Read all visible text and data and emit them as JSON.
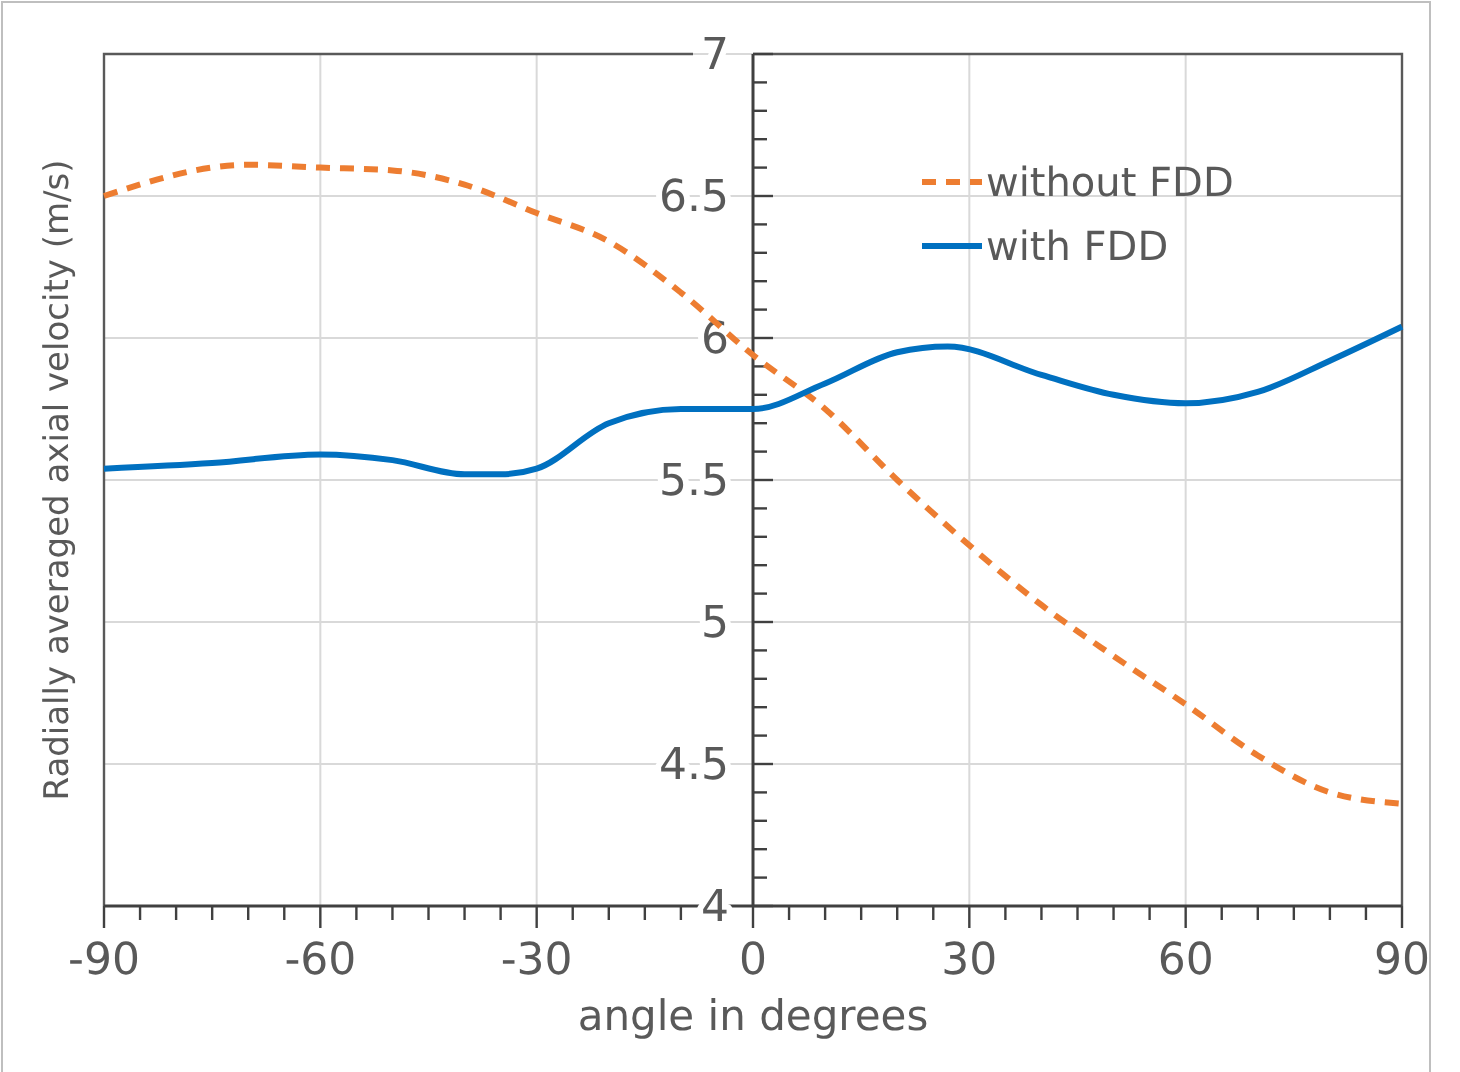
{
  "chart_data": {
    "type": "line",
    "xlabel": "angle in degrees",
    "ylabel": "Radially averaged axial velocity (m/s)",
    "xlim": [
      -90,
      90
    ],
    "ylim": [
      4,
      7
    ],
    "xticks": [
      -90,
      {
        "value": -85,
        "label": null
      },
      {
        "value": -80,
        "label": null
      },
      {
        "value": -75,
        "label": null
      },
      {
        "value": -70,
        "label": null
      },
      {
        "value": -65,
        "label": null
      },
      -60,
      {
        "value": -55,
        "label": null
      },
      {
        "value": -50,
        "label": null
      },
      {
        "value": -45,
        "label": null
      },
      {
        "value": -40,
        "label": null
      },
      {
        "value": -35,
        "label": null
      },
      -30,
      {
        "value": -25,
        "label": null
      },
      {
        "value": -20,
        "label": null
      },
      {
        "value": -15,
        "label": null
      },
      {
        "value": -10,
        "label": null
      },
      {
        "value": -5,
        "label": null
      },
      0,
      {
        "value": 5,
        "label": null
      },
      {
        "value": 10,
        "label": null
      },
      {
        "value": 15,
        "label": null
      },
      {
        "value": 20,
        "label": null
      },
      {
        "value": 25,
        "label": null
      },
      30,
      {
        "value": 35,
        "label": null
      },
      {
        "value": 40,
        "label": null
      },
      {
        "value": 45,
        "label": null
      },
      {
        "value": 50,
        "label": null
      },
      {
        "value": 55,
        "label": null
      },
      60,
      {
        "value": 65,
        "label": null
      },
      {
        "value": 70,
        "label": null
      },
      {
        "value": 75,
        "label": null
      },
      {
        "value": 80,
        "label": null
      },
      {
        "value": 85,
        "label": null
      },
      90
    ],
    "yticks": [
      4,
      {
        "value": 4.1,
        "label": null
      },
      {
        "value": 4.2,
        "label": null
      },
      {
        "value": 4.3,
        "label": null
      },
      {
        "value": 4.4,
        "label": null
      },
      4.5,
      {
        "value": 4.6,
        "label": null
      },
      {
        "value": 4.7,
        "label": null
      },
      {
        "value": 4.8,
        "label": null
      },
      {
        "value": 4.9,
        "label": null
      },
      5,
      {
        "value": 5.1,
        "label": null
      },
      {
        "value": 5.2,
        "label": null
      },
      {
        "value": 5.3,
        "label": null
      },
      {
        "value": 5.4,
        "label": null
      },
      5.5,
      {
        "value": 5.6,
        "label": null
      },
      {
        "value": 5.7,
        "label": null
      },
      {
        "value": 5.8,
        "label": null
      },
      {
        "value": 5.9,
        "label": null
      },
      6,
      {
        "value": 6.1,
        "label": null
      },
      {
        "value": 6.2,
        "label": null
      },
      {
        "value": 6.3,
        "label": null
      },
      {
        "value": 6.4,
        "label": null
      },
      6.5,
      {
        "value": 6.6,
        "label": null
      },
      {
        "value": 6.7,
        "label": null
      },
      {
        "value": 6.8,
        "label": null
      },
      {
        "value": 6.9,
        "label": null
      },
      7
    ],
    "grid": true,
    "legend": "top right",
    "series": [
      {
        "name": "without FDD",
        "color": "#ed7d31",
        "line_style": "dashed",
        "x": [
          -90,
          -70,
          -60,
          -50,
          -40,
          -30,
          -20,
          -10,
          0,
          10,
          20,
          30,
          40,
          50,
          60,
          70,
          80,
          90
        ],
        "values": [
          6.5,
          6.61,
          6.6,
          6.59,
          6.54,
          6.44,
          6.34,
          6.16,
          5.94,
          5.75,
          5.5,
          5.27,
          5.06,
          4.88,
          4.71,
          4.53,
          4.4,
          4.36
        ]
      },
      {
        "name": "with FDD",
        "color": "#0070c0",
        "line_style": "solid",
        "x": [
          -90,
          -75,
          -60,
          -50,
          -40,
          -35,
          -30,
          -20,
          -10,
          0,
          10,
          20,
          27,
          40,
          50,
          60,
          70,
          80,
          90
        ],
        "values": [
          5.54,
          5.56,
          5.59,
          5.57,
          5.52,
          5.52,
          5.54,
          5.7,
          5.75,
          5.75,
          5.84,
          5.95,
          5.97,
          5.87,
          5.8,
          5.77,
          5.81,
          5.92,
          6.04
        ]
      }
    ]
  }
}
